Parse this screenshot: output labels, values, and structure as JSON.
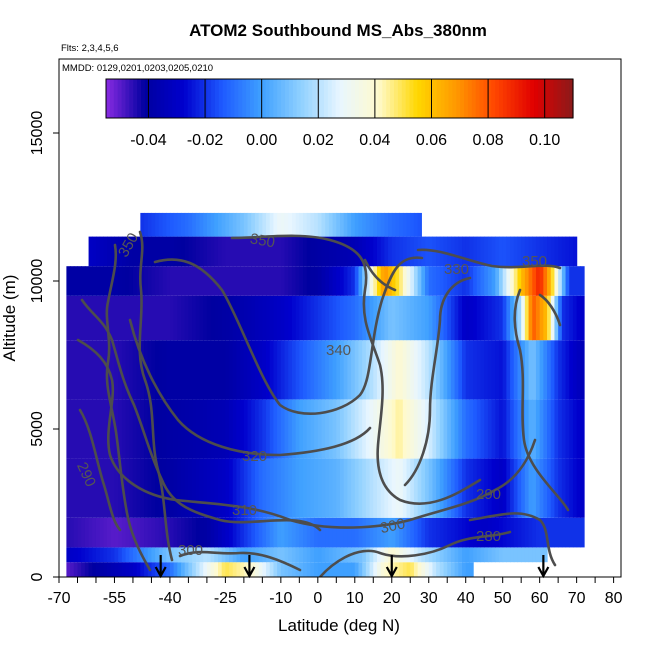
{
  "chart_data": {
    "type": "heatmap",
    "title": "ATOM2 Southbound MS_Abs_380nm",
    "flights_note": "Flts: 2,3,4,5,6",
    "dates_note": "MMDD: 0129,0201,0203,0205,0210",
    "xlabel": "Latitude (deg N)",
    "ylabel": "Altitude (m)",
    "xlim": [
      -70,
      82
    ],
    "ylim": [
      0,
      17500
    ],
    "x_ticks": [
      -70,
      -55,
      -40,
      -25,
      -10,
      0,
      10,
      20,
      30,
      40,
      50,
      60,
      70,
      80
    ],
    "x_tick_labels": [
      "-70",
      "-55",
      "-40",
      "-25",
      "-10",
      "0",
      "10",
      "20",
      "30",
      "40",
      "50",
      "60",
      "70",
      "80"
    ],
    "x_minor_ticks": [
      -65,
      -60,
      -50,
      -45,
      -35,
      -30,
      -20,
      -15,
      -5,
      5,
      15,
      25,
      35,
      45,
      55,
      65,
      75
    ],
    "y_ticks": [
      0,
      5000,
      10000,
      15000
    ],
    "y_tick_labels": [
      "0",
      "5000",
      "10000",
      "15000"
    ],
    "colorbar": {
      "range": [
        -0.055,
        0.11
      ],
      "ticks": [
        -0.04,
        -0.02,
        0.0,
        0.02,
        0.04,
        0.06,
        0.08,
        0.1
      ],
      "tick_labels": [
        "-0.04",
        "-0.02",
        "0.00",
        "0.02",
        "0.04",
        "0.06",
        "0.08",
        "0.10"
      ],
      "colors": [
        "#8a2be2",
        "#0000a0",
        "#0000cd",
        "#1e5bff",
        "#3fa0ff",
        "#8fd0ff",
        "#e8f6ff",
        "#fffacd",
        "#ffd700",
        "#ff9800",
        "#ff4500",
        "#e00000",
        "#8b1a1a"
      ]
    },
    "heatmap_rows": [
      {
        "y0": 0,
        "y1": 500,
        "x0": -68,
        "x1": 42,
        "profile": [
          [
            -68,
            -0.05
          ],
          [
            -60,
            -0.04
          ],
          [
            -50,
            -0.03
          ],
          [
            -40,
            -0.01
          ],
          [
            -30,
            0.03
          ],
          [
            -25,
            0.05
          ],
          [
            -18,
            0.04
          ],
          [
            -10,
            0.01
          ],
          [
            0,
            0.0
          ],
          [
            10,
            0.0
          ],
          [
            18,
            0.04
          ],
          [
            25,
            0.05
          ],
          [
            32,
            0.02
          ],
          [
            40,
            0.0
          ]
        ]
      },
      {
        "y0": 500,
        "y1": 1000,
        "x0": -68,
        "x1": 62,
        "profile": [
          [
            -68,
            -0.03
          ],
          [
            -55,
            -0.02
          ],
          [
            -40,
            0.01
          ],
          [
            -30,
            0.02
          ],
          [
            -20,
            0.0
          ],
          [
            -10,
            0.01
          ],
          [
            0,
            0.0
          ],
          [
            12,
            0.01
          ],
          [
            20,
            0.04
          ],
          [
            28,
            0.02
          ],
          [
            40,
            0.0
          ],
          [
            50,
            0.01
          ],
          [
            62,
            0.01
          ]
        ]
      },
      {
        "y0": 1000,
        "y1": 2000,
        "x0": -68,
        "x1": 72,
        "profile": [
          [
            -68,
            -0.045
          ],
          [
            -55,
            -0.05
          ],
          [
            -40,
            -0.045
          ],
          [
            -30,
            -0.04
          ],
          [
            -20,
            -0.02
          ],
          [
            -10,
            0.0
          ],
          [
            0,
            -0.01
          ],
          [
            10,
            -0.01
          ],
          [
            20,
            0.0
          ],
          [
            30,
            -0.02
          ],
          [
            45,
            -0.03
          ],
          [
            60,
            -0.02
          ],
          [
            72,
            -0.02
          ]
        ]
      },
      {
        "y0": 2000,
        "y1": 4000,
        "x0": -68,
        "x1": 72,
        "profile": [
          [
            -68,
            -0.045
          ],
          [
            -55,
            -0.045
          ],
          [
            -40,
            -0.04
          ],
          [
            -25,
            -0.03
          ],
          [
            -15,
            -0.01
          ],
          [
            -5,
            0.0
          ],
          [
            5,
            0.005
          ],
          [
            15,
            0.02
          ],
          [
            22,
            0.03
          ],
          [
            30,
            0.01
          ],
          [
            40,
            -0.02
          ],
          [
            50,
            -0.03
          ],
          [
            58,
            0.0
          ],
          [
            65,
            -0.02
          ],
          [
            72,
            -0.03
          ]
        ]
      },
      {
        "y0": 4000,
        "y1": 6000,
        "x0": -68,
        "x1": 72,
        "profile": [
          [
            -68,
            -0.045
          ],
          [
            -55,
            -0.045
          ],
          [
            -40,
            -0.04
          ],
          [
            -25,
            -0.035
          ],
          [
            -15,
            -0.02
          ],
          [
            -5,
            0.0
          ],
          [
            5,
            0.01
          ],
          [
            15,
            0.03
          ],
          [
            22,
            0.045
          ],
          [
            30,
            0.025
          ],
          [
            40,
            -0.01
          ],
          [
            50,
            -0.025
          ],
          [
            58,
            0.005
          ],
          [
            65,
            -0.02
          ],
          [
            72,
            -0.03
          ]
        ]
      },
      {
        "y0": 6000,
        "y1": 8000,
        "x0": -68,
        "x1": 72,
        "profile": [
          [
            -68,
            -0.045
          ],
          [
            -55,
            -0.045
          ],
          [
            -40,
            -0.04
          ],
          [
            -25,
            -0.04
          ],
          [
            -15,
            -0.03
          ],
          [
            -5,
            -0.015
          ],
          [
            5,
            0.0
          ],
          [
            15,
            0.02
          ],
          [
            22,
            0.04
          ],
          [
            30,
            0.02
          ],
          [
            40,
            -0.02
          ],
          [
            50,
            -0.025
          ],
          [
            58,
            0.01
          ],
          [
            65,
            -0.02
          ],
          [
            72,
            -0.035
          ]
        ]
      },
      {
        "y0": 8000,
        "y1": 9500,
        "x0": -68,
        "x1": 72,
        "profile": [
          [
            -68,
            -0.045
          ],
          [
            -55,
            -0.045
          ],
          [
            -40,
            -0.045
          ],
          [
            -25,
            -0.04
          ],
          [
            -10,
            -0.03
          ],
          [
            0,
            -0.02
          ],
          [
            10,
            -0.01
          ],
          [
            20,
            0.01
          ],
          [
            30,
            0.0
          ],
          [
            40,
            -0.03
          ],
          [
            50,
            -0.02
          ],
          [
            55,
            0.02
          ],
          [
            58,
            0.08
          ],
          [
            62,
            0.06
          ],
          [
            66,
            -0.02
          ],
          [
            72,
            -0.03
          ]
        ]
      },
      {
        "y0": 9500,
        "y1": 10500,
        "x0": -68,
        "x1": 72,
        "profile": [
          [
            -68,
            -0.04
          ],
          [
            -55,
            -0.04
          ],
          [
            -40,
            -0.045
          ],
          [
            -25,
            -0.045
          ],
          [
            -10,
            -0.045
          ],
          [
            0,
            -0.04
          ],
          [
            10,
            -0.02
          ],
          [
            15,
            0.04
          ],
          [
            18,
            0.07
          ],
          [
            22,
            0.05
          ],
          [
            30,
            -0.01
          ],
          [
            40,
            -0.02
          ],
          [
            48,
            0.0
          ],
          [
            55,
            0.06
          ],
          [
            60,
            0.09
          ],
          [
            63,
            0.06
          ],
          [
            68,
            -0.02
          ]
        ]
      },
      {
        "y0": 10500,
        "y1": 11500,
        "x0": -62,
        "x1": 70,
        "profile": [
          [
            -62,
            -0.03
          ],
          [
            -50,
            -0.04
          ],
          [
            -40,
            -0.04
          ],
          [
            -25,
            -0.045
          ],
          [
            -10,
            -0.045
          ],
          [
            0,
            -0.04
          ],
          [
            10,
            -0.035
          ],
          [
            20,
            -0.02
          ],
          [
            30,
            -0.015
          ],
          [
            40,
            -0.02
          ],
          [
            50,
            -0.015
          ],
          [
            60,
            -0.02
          ],
          [
            70,
            -0.025
          ]
        ]
      },
      {
        "y0": 11500,
        "y1": 12300,
        "x0": -48,
        "x1": 28,
        "profile": [
          [
            -48,
            -0.02
          ],
          [
            -35,
            -0.01
          ],
          [
            -20,
            0.01
          ],
          [
            -10,
            0.03
          ],
          [
            0,
            0.02
          ],
          [
            10,
            0.0
          ],
          [
            20,
            -0.01
          ],
          [
            28,
            -0.015
          ]
        ]
      }
    ],
    "contour_labels": [
      "350",
      "350",
      "330",
      "350",
      "340",
      "320",
      "310",
      "300",
      "300",
      "290",
      "290",
      "280"
    ],
    "flight_markers_deg_n": [
      -42.5,
      -18.5,
      20,
      61
    ]
  }
}
